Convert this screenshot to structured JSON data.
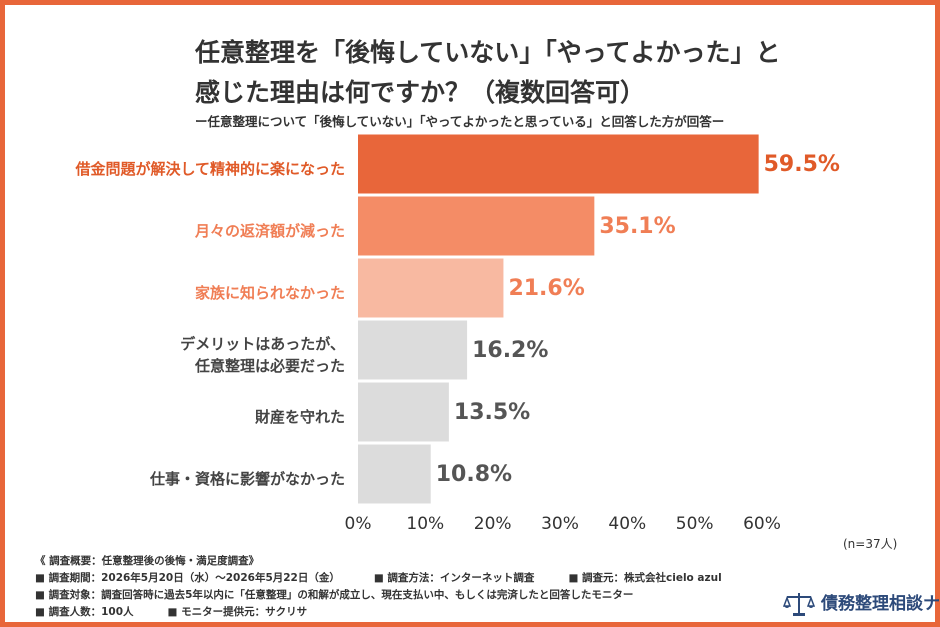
{
  "chart_data": {
    "type": "bar",
    "orientation": "horizontal",
    "title": "任意整理を「後悔していない」「やってよかった」と\n感じた理由は何ですか？（複数回答可）",
    "subtitle": "ー任意整理について「後悔していない」「やってよかったと思っている」と回答した方が回答ー",
    "categories": [
      "借金問題が解決して精神的に楽になった",
      "月々の返済額が減った",
      "家族に知られなかった",
      "デメリットはあったが、\n任意整理は必要だった",
      "財産を守れた",
      "仕事・資格に影響がなかった"
    ],
    "values": [
      59.5,
      35.1,
      21.6,
      16.2,
      13.5,
      10.8
    ],
    "value_labels": [
      "59.5%",
      "35.1%",
      "21.6%",
      "16.2%",
      "13.5%",
      "10.8%"
    ],
    "colors": [
      "#e8663a",
      "#f48c66",
      "#f8b9a1",
      "#dcdcdc",
      "#dcdcdc",
      "#dcdcdc"
    ],
    "label_colors": [
      "#e05a28",
      "#f07e55",
      "#f07e55",
      "#444444",
      "#444444",
      "#444444"
    ],
    "xlim": [
      0,
      60
    ],
    "xticks": [
      {
        "value": 0,
        "label": "0%"
      },
      {
        "value": 10,
        "label": "10%"
      },
      {
        "value": 20,
        "label": "20%"
      },
      {
        "value": 30,
        "label": "30%"
      },
      {
        "value": 40,
        "label": "40%"
      },
      {
        "value": 50,
        "label": "50%"
      },
      {
        "value": 60,
        "label": "60%"
      }
    ],
    "note": "(n=37人)"
  },
  "footer": {
    "heading": "《 調査概要：任意整理後の後悔・満足度調査》",
    "rows": [
      [
        "■ 調査期間：2026年5月20日（水）～2026年5月22日（金）",
        "■ 調査方法：インターネット調査",
        "■ 調査元：株式会社cielo azul"
      ],
      [
        "■ 調査対象：調査回答時に過去5年以内に「任意整理」の和解が成立し、現在支払い中、もしくは完済したと回答したモニター"
      ],
      [
        "■ 調査人数：100人",
        "■ モニター提供元：サクリサ"
      ]
    ],
    "logo": "債務整理相談ナビ"
  }
}
